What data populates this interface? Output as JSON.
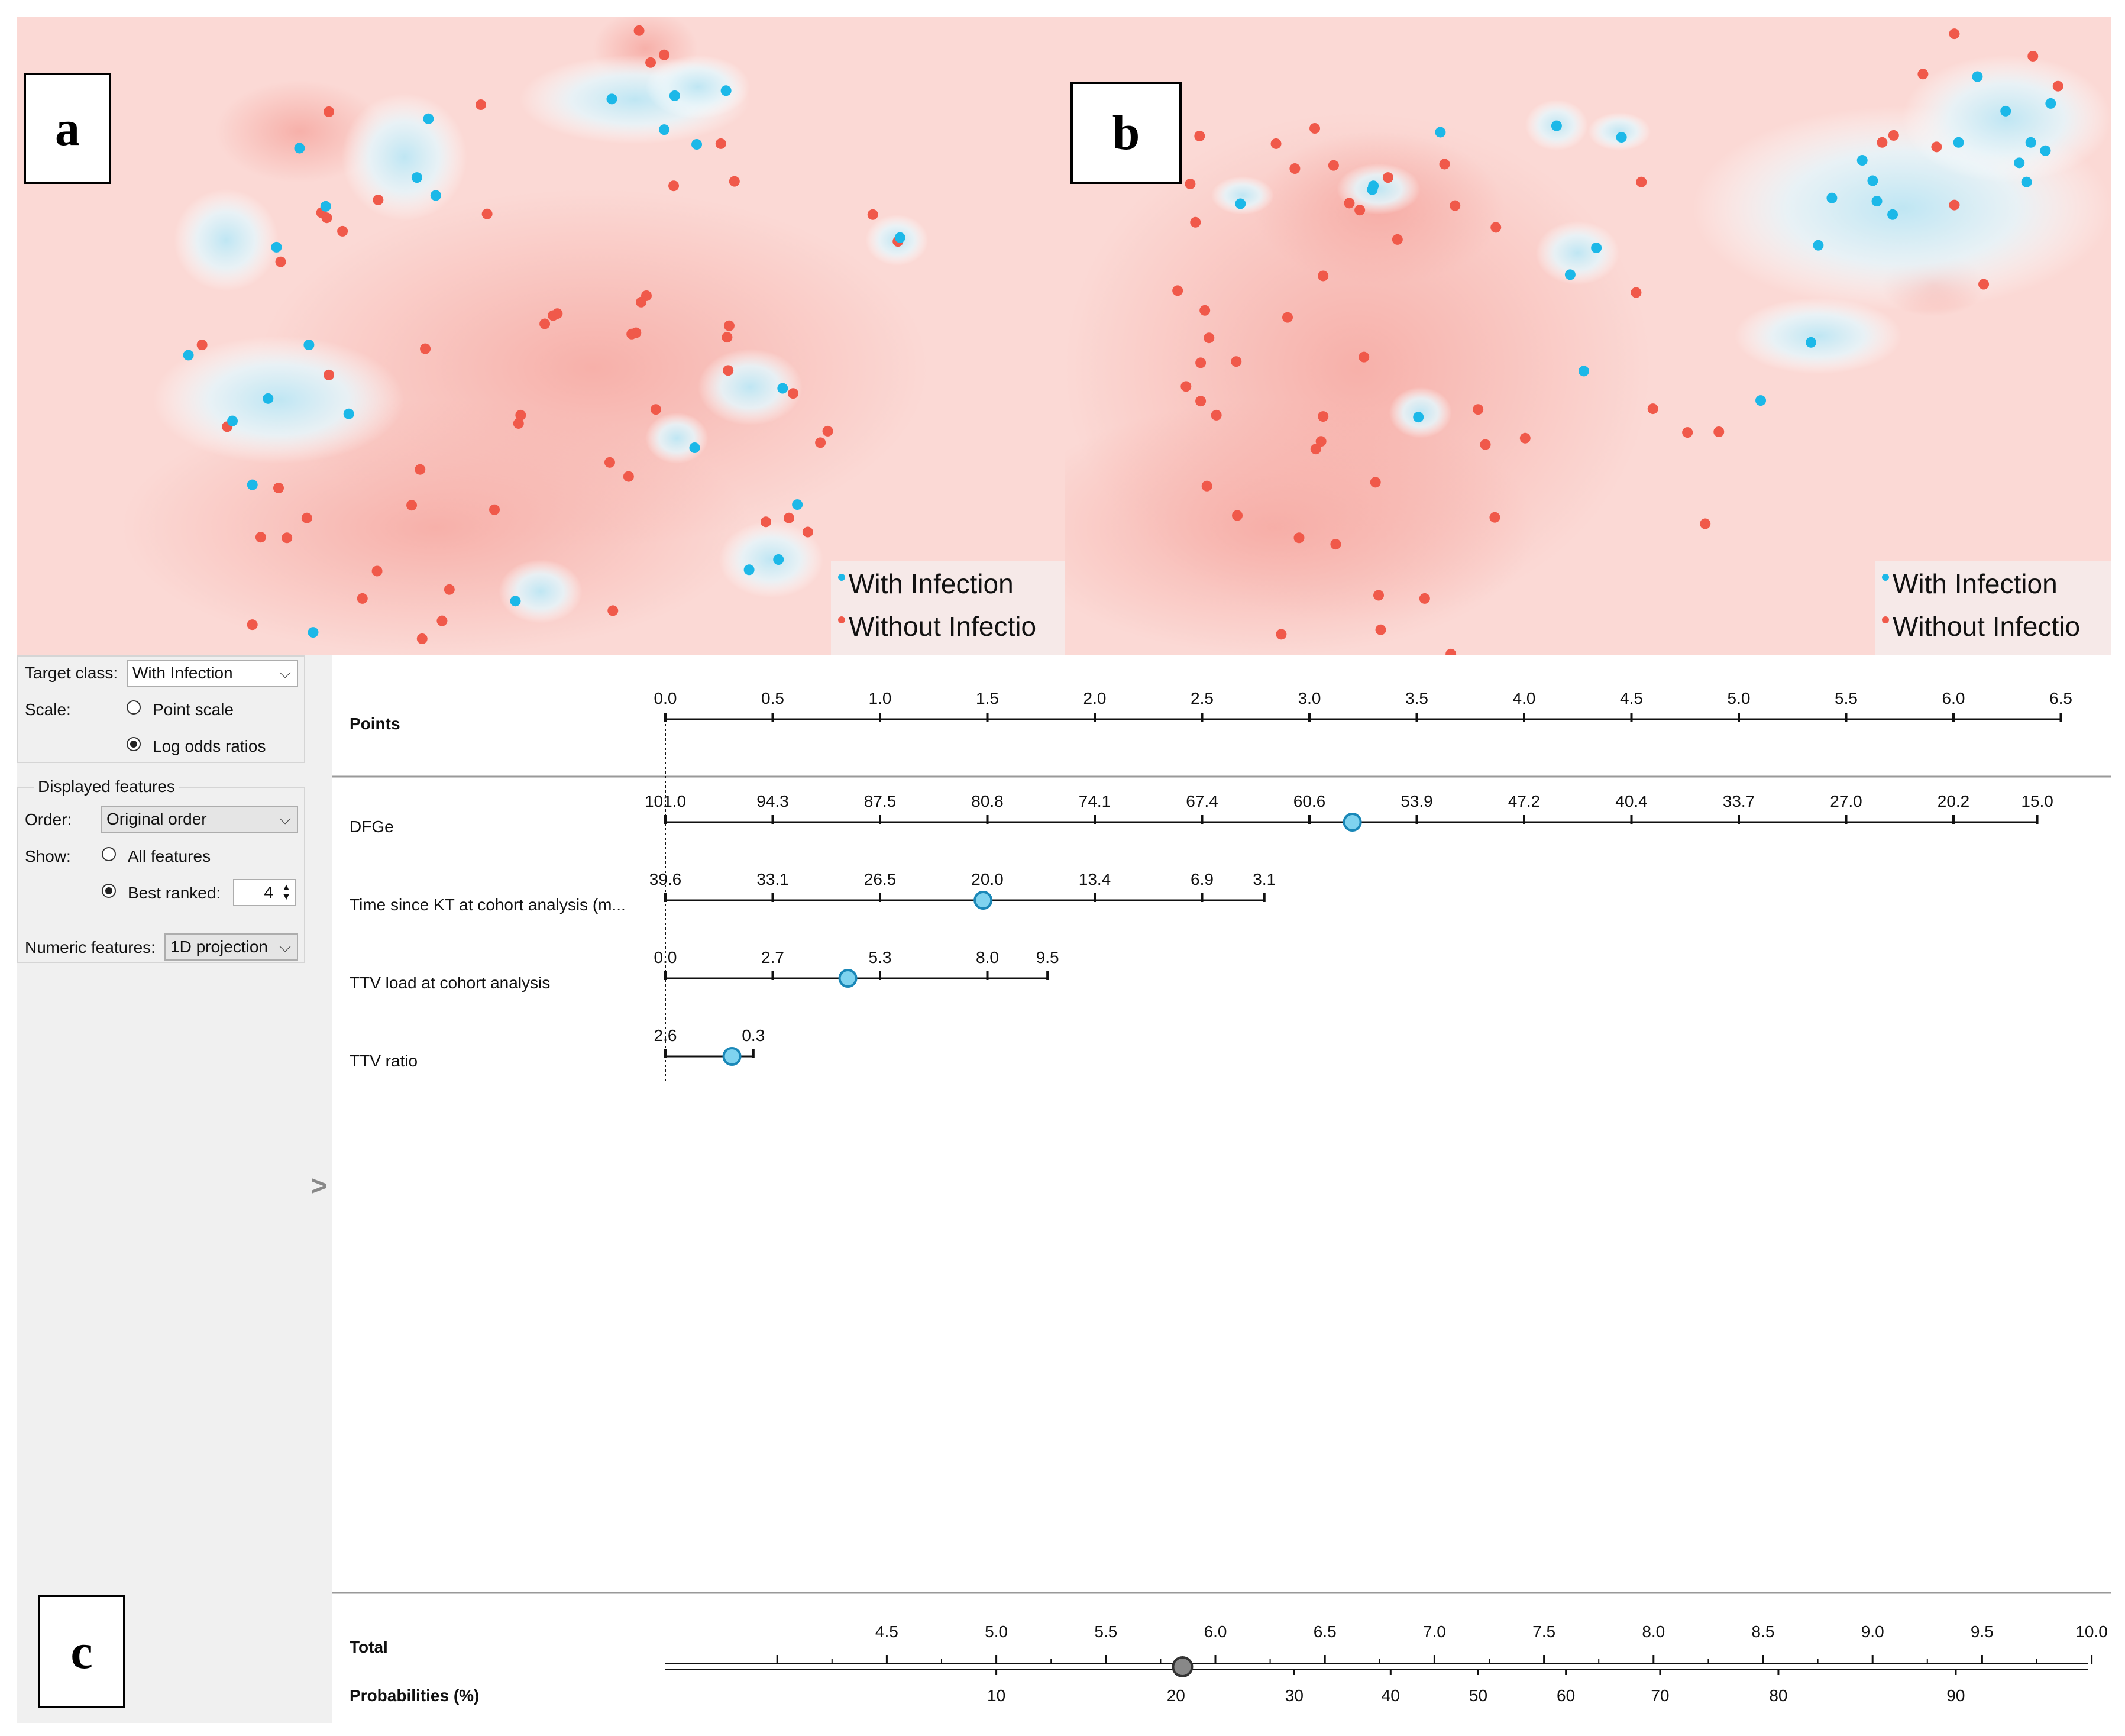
{
  "colors": {
    "with_infection": "#1cb8e8",
    "without_infection": "#f0594a",
    "bg_red": "#f6a9a2",
    "bg_blue": "#bfe6f3",
    "panel_gray": "#f0f0f0"
  },
  "panel_a": {
    "label": "a",
    "legend": {
      "with": "With Infection",
      "without": "Without Infectio"
    },
    "points_blue": [
      [
        0.568,
        0.129
      ],
      [
        0.628,
        0.124
      ],
      [
        0.677,
        0.116
      ],
      [
        0.393,
        0.16
      ],
      [
        0.27,
        0.206
      ],
      [
        0.618,
        0.177
      ],
      [
        0.649,
        0.2
      ],
      [
        0.382,
        0.252
      ],
      [
        0.4,
        0.28
      ],
      [
        0.295,
        0.297
      ],
      [
        0.248,
        0.361
      ],
      [
        0.843,
        0.346
      ],
      [
        0.279,
        0.514
      ],
      [
        0.164,
        0.53
      ],
      [
        0.24,
        0.598
      ],
      [
        0.317,
        0.622
      ],
      [
        0.206,
        0.633
      ],
      [
        0.647,
        0.675
      ],
      [
        0.225,
        0.733
      ],
      [
        0.731,
        0.582
      ],
      [
        0.745,
        0.764
      ],
      [
        0.727,
        0.85
      ],
      [
        0.699,
        0.866
      ],
      [
        0.476,
        0.915
      ],
      [
        0.283,
        0.964
      ]
    ],
    "points_red": [
      [
        0.594,
        0.022
      ],
      [
        0.605,
        0.072
      ],
      [
        0.618,
        0.06
      ],
      [
        0.298,
        0.149
      ],
      [
        0.443,
        0.138
      ],
      [
        0.672,
        0.199
      ],
      [
        0.627,
        0.265
      ],
      [
        0.685,
        0.258
      ],
      [
        0.291,
        0.307
      ],
      [
        0.345,
        0.287
      ],
      [
        0.296,
        0.315
      ],
      [
        0.311,
        0.336
      ],
      [
        0.449,
        0.309
      ],
      [
        0.817,
        0.31
      ],
      [
        0.841,
        0.352
      ],
      [
        0.252,
        0.384
      ],
      [
        0.601,
        0.437
      ],
      [
        0.596,
        0.447
      ],
      [
        0.504,
        0.481
      ],
      [
        0.512,
        0.468
      ],
      [
        0.516,
        0.465
      ],
      [
        0.587,
        0.497
      ],
      [
        0.591,
        0.495
      ],
      [
        0.68,
        0.484
      ],
      [
        0.678,
        0.502
      ],
      [
        0.679,
        0.554
      ],
      [
        0.177,
        0.514
      ],
      [
        0.39,
        0.52
      ],
      [
        0.298,
        0.561
      ],
      [
        0.61,
        0.615
      ],
      [
        0.481,
        0.624
      ],
      [
        0.479,
        0.637
      ],
      [
        0.741,
        0.59
      ],
      [
        0.774,
        0.649
      ],
      [
        0.767,
        0.667
      ],
      [
        0.201,
        0.642
      ],
      [
        0.566,
        0.698
      ],
      [
        0.584,
        0.72
      ],
      [
        0.25,
        0.738
      ],
      [
        0.385,
        0.709
      ],
      [
        0.377,
        0.765
      ],
      [
        0.715,
        0.791
      ],
      [
        0.737,
        0.785
      ],
      [
        0.755,
        0.807
      ],
      [
        0.277,
        0.785
      ],
      [
        0.233,
        0.815
      ],
      [
        0.258,
        0.816
      ],
      [
        0.456,
        0.772
      ],
      [
        0.344,
        0.868
      ],
      [
        0.33,
        0.911
      ],
      [
        0.413,
        0.897
      ],
      [
        0.569,
        0.93
      ],
      [
        0.225,
        0.952
      ],
      [
        0.387,
        0.974
      ],
      [
        0.406,
        0.946
      ]
    ],
    "blobs_blue": [
      [
        0.59,
        0.13,
        0.11,
        0.07
      ],
      [
        0.65,
        0.11,
        0.05,
        0.05
      ],
      [
        0.37,
        0.22,
        0.06,
        0.1
      ],
      [
        0.25,
        0.6,
        0.12,
        0.1
      ],
      [
        0.72,
        0.85,
        0.05,
        0.06
      ],
      [
        0.7,
        0.58,
        0.05,
        0.06
      ],
      [
        0.5,
        0.9,
        0.04,
        0.05
      ],
      [
        0.84,
        0.35,
        0.03,
        0.04
      ],
      [
        0.63,
        0.66,
        0.03,
        0.04
      ],
      [
        0.2,
        0.35,
        0.05,
        0.08
      ]
    ],
    "blobs_red": [
      [
        0.55,
        0.55,
        0.32,
        0.28
      ],
      [
        0.4,
        0.8,
        0.3,
        0.2
      ],
      [
        0.27,
        0.18,
        0.08,
        0.08
      ],
      [
        0.6,
        0.05,
        0.05,
        0.06
      ]
    ]
  },
  "panel_b": {
    "label": "b",
    "legend": {
      "with": "With Infection",
      "without": "Without Infectio"
    },
    "points_blue": [
      [
        0.872,
        0.094
      ],
      [
        0.899,
        0.148
      ],
      [
        0.942,
        0.136
      ],
      [
        0.923,
        0.197
      ],
      [
        0.937,
        0.21
      ],
      [
        0.912,
        0.229
      ],
      [
        0.919,
        0.259
      ],
      [
        0.854,
        0.197
      ],
      [
        0.772,
        0.257
      ],
      [
        0.762,
        0.225
      ],
      [
        0.776,
        0.289
      ],
      [
        0.791,
        0.31
      ],
      [
        0.733,
        0.284
      ],
      [
        0.72,
        0.358
      ],
      [
        0.532,
        0.189
      ],
      [
        0.508,
        0.362
      ],
      [
        0.483,
        0.404
      ],
      [
        0.47,
        0.171
      ],
      [
        0.359,
        0.181
      ],
      [
        0.295,
        0.265
      ],
      [
        0.294,
        0.271
      ],
      [
        0.168,
        0.293
      ],
      [
        0.713,
        0.51
      ],
      [
        0.496,
        0.555
      ],
      [
        0.665,
        0.601
      ],
      [
        0.338,
        0.627
      ]
    ],
    "points_red": [
      [
        0.85,
        0.027
      ],
      [
        0.925,
        0.062
      ],
      [
        0.949,
        0.109
      ],
      [
        0.82,
        0.09
      ],
      [
        0.792,
        0.186
      ],
      [
        0.833,
        0.204
      ],
      [
        0.781,
        0.197
      ],
      [
        0.85,
        0.295
      ],
      [
        0.551,
        0.259
      ],
      [
        0.546,
        0.432
      ],
      [
        0.878,
        0.419
      ],
      [
        0.202,
        0.199
      ],
      [
        0.239,
        0.175
      ],
      [
        0.257,
        0.233
      ],
      [
        0.309,
        0.252
      ],
      [
        0.363,
        0.231
      ],
      [
        0.412,
        0.33
      ],
      [
        0.373,
        0.296
      ],
      [
        0.318,
        0.349
      ],
      [
        0.272,
        0.292
      ],
      [
        0.282,
        0.303
      ],
      [
        0.22,
        0.238
      ],
      [
        0.129,
        0.187
      ],
      [
        0.12,
        0.262
      ],
      [
        0.125,
        0.322
      ],
      [
        0.108,
        0.429
      ],
      [
        0.134,
        0.46
      ],
      [
        0.138,
        0.503
      ],
      [
        0.13,
        0.542
      ],
      [
        0.164,
        0.54
      ],
      [
        0.116,
        0.579
      ],
      [
        0.13,
        0.602
      ],
      [
        0.145,
        0.624
      ],
      [
        0.213,
        0.471
      ],
      [
        0.247,
        0.406
      ],
      [
        0.286,
        0.533
      ],
      [
        0.247,
        0.626
      ],
      [
        0.245,
        0.665
      ],
      [
        0.44,
        0.66
      ],
      [
        0.402,
        0.67
      ],
      [
        0.297,
        0.729
      ],
      [
        0.24,
        0.677
      ],
      [
        0.395,
        0.615
      ],
      [
        0.562,
        0.614
      ],
      [
        0.595,
        0.651
      ],
      [
        0.625,
        0.65
      ],
      [
        0.612,
        0.794
      ],
      [
        0.136,
        0.735
      ],
      [
        0.165,
        0.781
      ],
      [
        0.411,
        0.784
      ],
      [
        0.224,
        0.816
      ],
      [
        0.259,
        0.826
      ],
      [
        0.3,
        0.906
      ],
      [
        0.344,
        0.911
      ],
      [
        0.302,
        0.96
      ],
      [
        0.207,
        0.967
      ],
      [
        0.369,
        0.998
      ]
    ],
    "blobs_blue": [
      [
        0.8,
        0.3,
        0.2,
        0.16
      ],
      [
        0.9,
        0.16,
        0.1,
        0.1
      ],
      [
        0.72,
        0.5,
        0.08,
        0.06
      ],
      [
        0.49,
        0.37,
        0.04,
        0.05
      ],
      [
        0.47,
        0.17,
        0.03,
        0.04
      ],
      [
        0.3,
        0.27,
        0.04,
        0.04
      ],
      [
        0.17,
        0.28,
        0.03,
        0.03
      ],
      [
        0.34,
        0.62,
        0.03,
        0.04
      ],
      [
        0.53,
        0.18,
        0.03,
        0.03
      ]
    ],
    "blobs_red": [
      [
        0.28,
        0.55,
        0.28,
        0.4
      ],
      [
        0.2,
        0.8,
        0.25,
        0.2
      ],
      [
        0.3,
        0.3,
        0.12,
        0.12
      ],
      [
        0.83,
        0.42,
        0.05,
        0.05
      ]
    ]
  },
  "controls": {
    "target_class_label": "Target class:",
    "target_class_value": "With Infection",
    "scale_label": "Scale:",
    "scale_option_point": "Point scale",
    "scale_option_log": "Log odds ratios",
    "displayed_features_title": "Displayed features",
    "order_label": "Order:",
    "order_value": "Original order",
    "show_label": "Show:",
    "show_all": "All features",
    "show_best": "Best ranked:",
    "best_ranked_value": "4",
    "numeric_features_label": "Numeric features:",
    "numeric_features_value": "1D projection",
    "collapse_arrow": ">"
  },
  "nomogram": {
    "panel_label": "c",
    "points_label": "Points",
    "points_ticks": [
      "0.0",
      "0.5",
      "1.0",
      "1.5",
      "2.0",
      "2.5",
      "3.0",
      "3.5",
      "4.0",
      "4.5",
      "5.0",
      "5.5",
      "6.0",
      "6.5"
    ],
    "features": [
      {
        "name": "DFGe",
        "ticks": [
          "101.0",
          "94.3",
          "87.5",
          "80.8",
          "74.1",
          "67.4",
          "60.6",
          "53.9",
          "47.2",
          "40.4",
          "33.7",
          "27.0",
          "20.2",
          "15.0"
        ],
        "tick_points": [
          0,
          0.5,
          1,
          1.5,
          2,
          2.5,
          3,
          3.5,
          4,
          4.5,
          5,
          5.5,
          6,
          6.39
        ],
        "marker_points": 3.2
      },
      {
        "name": "Time since KT at cohort analysis (m...",
        "ticks": [
          "39.6",
          "33.1",
          "26.5",
          "20.0",
          "13.4",
          "6.9",
          "3.1"
        ],
        "tick_points": [
          0,
          0.5,
          1,
          1.5,
          2,
          2.5,
          2.79
        ],
        "marker_points": 1.48
      },
      {
        "name": "TTV load at cohort analysis",
        "ticks": [
          "0.0",
          "2.7",
          "5.3",
          "8.0",
          "9.5"
        ],
        "tick_points": [
          0,
          0.5,
          1,
          1.5,
          1.78
        ],
        "marker_points": 0.85
      },
      {
        "name": "TTV ratio",
        "ticks": [
          "2.6",
          "0.3"
        ],
        "tick_points": [
          0,
          0.41
        ],
        "marker_points": 0.31
      }
    ],
    "total_label": "Total",
    "total_ticks": [
      "4.5",
      "5.0",
      "5.5",
      "6.0",
      "6.5",
      "7.0",
      "7.5",
      "8.0",
      "8.5",
      "9.0",
      "9.5",
      "10.0"
    ],
    "total_values": [
      4.5,
      5.0,
      5.5,
      6.0,
      6.5,
      7.0,
      7.5,
      8.0,
      8.5,
      9.0,
      9.5,
      10.0
    ],
    "total_marker": 5.85,
    "prob_label": "Probabilities (%)",
    "prob_ticks": [
      "10",
      "20",
      "30",
      "40",
      "50",
      "60",
      "70",
      "80",
      "90"
    ],
    "prob_totals": [
      5.0,
      5.82,
      6.36,
      6.8,
      7.2,
      7.6,
      8.03,
      8.57,
      9.38
    ]
  }
}
